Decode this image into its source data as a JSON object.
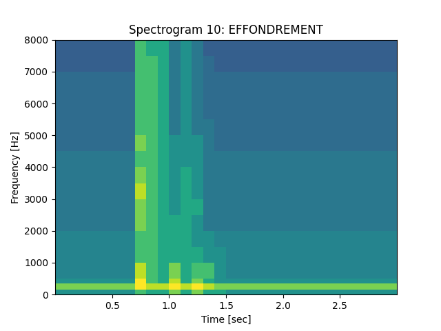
{
  "chart_data": {
    "type": "heatmap",
    "title": "Spectrogram 10: EFFONDREMENT",
    "x_label": "Time [sec]",
    "y_label": "Frequency [Hz]",
    "color": "viridis",
    "xlim": [
      0,
      3
    ],
    "xticks": [
      0.5,
      1.0,
      1.5,
      2.0,
      2.5
    ],
    "ylim": [
      0,
      8000
    ],
    "yticks": [
      0,
      1000,
      2000,
      3000,
      4000,
      5000,
      6000,
      7000,
      8000
    ],
    "clim": [
      0,
      10
    ],
    "x_edges": [
      0,
      0.1,
      0.2,
      0.3,
      0.4,
      0.5,
      0.6,
      0.7,
      0.8,
      0.9,
      1.0,
      1.1,
      1.2,
      1.3,
      1.4,
      1.5,
      1.6,
      1.7,
      1.8,
      1.9,
      2.0,
      2.1,
      2.2,
      2.3,
      2.4,
      2.5,
      2.6,
      2.7,
      2.8,
      2.9,
      3.0
    ],
    "y_edges": [
      0,
      150,
      350,
      500,
      1000,
      1500,
      2000,
      2500,
      3000,
      3500,
      4000,
      4500,
      5000,
      5500,
      6000,
      6500,
      7000,
      7500,
      8000
    ],
    "cells": [
      [
        5,
        5,
        5,
        5,
        5,
        5,
        5,
        7,
        6,
        6,
        8,
        6,
        8,
        6,
        6,
        5,
        5,
        5,
        5,
        5,
        5,
        5,
        5,
        5,
        5,
        5,
        5,
        5,
        5,
        5
      ],
      [
        8,
        8,
        8,
        8,
        8,
        8,
        8,
        10,
        9,
        9,
        10,
        9,
        10,
        9,
        8,
        8,
        8,
        8,
        8,
        8,
        8,
        8,
        8,
        8,
        8,
        8,
        8,
        8,
        8,
        8
      ],
      [
        5,
        5,
        5,
        5,
        5,
        5,
        5,
        10,
        7,
        6,
        9,
        6,
        8,
        6,
        5,
        5,
        5,
        5,
        5,
        5,
        5,
        5,
        5,
        5,
        5,
        5,
        5,
        5,
        5,
        5
      ],
      [
        4.5,
        4.5,
        4.5,
        4.5,
        4.5,
        4.5,
        4.5,
        9,
        7,
        6,
        8,
        6,
        7,
        7,
        5,
        4.5,
        4.5,
        4.5,
        4.5,
        4.5,
        4.5,
        4.5,
        4.5,
        4.5,
        4.5,
        4.5,
        4.5,
        4.5,
        4.5,
        4.5
      ],
      [
        4.5,
        4.5,
        4.5,
        4.5,
        4.5,
        4.5,
        4.5,
        7,
        7,
        6,
        6,
        6,
        6,
        5,
        5,
        4.5,
        4.5,
        4.5,
        4.5,
        4.5,
        4.5,
        4.5,
        4.5,
        4.5,
        4.5,
        4.5,
        4.5,
        4.5,
        4.5,
        4.5
      ],
      [
        4.5,
        4.5,
        4.5,
        4.5,
        4.5,
        4.5,
        4.5,
        7,
        7,
        6,
        6,
        6,
        5,
        5,
        4.5,
        4.5,
        4.5,
        4.5,
        4.5,
        4.5,
        4.5,
        4.5,
        4.5,
        4.5,
        4.5,
        4.5,
        4.5,
        4.5,
        4.5,
        4.5
      ],
      [
        4,
        4,
        4,
        4,
        4,
        4,
        4,
        8,
        7,
        6,
        6,
        6,
        5,
        4,
        4,
        4,
        4,
        4,
        4,
        4,
        4,
        4,
        4,
        4,
        4,
        4,
        4,
        4,
        4,
        4
      ],
      [
        4,
        4,
        4,
        4,
        4,
        4,
        4,
        8,
        7,
        6,
        5,
        6,
        6,
        4,
        4,
        4,
        4,
        4,
        4,
        4,
        4,
        4,
        4,
        4,
        4,
        4,
        4,
        4,
        4,
        4
      ],
      [
        4,
        4,
        4,
        4,
        4,
        4,
        4,
        9,
        7,
        6,
        5,
        6,
        5,
        4,
        4,
        4,
        4,
        4,
        4,
        4,
        4,
        4,
        4,
        4,
        4,
        4,
        4,
        4,
        4,
        4
      ],
      [
        4,
        4,
        4,
        4,
        4,
        4,
        4,
        8,
        7,
        6,
        5,
        6,
        5,
        4,
        4,
        4,
        4,
        4,
        4,
        4,
        4,
        4,
        4,
        4,
        4,
        4,
        4,
        4,
        4,
        4
      ],
      [
        4,
        4,
        4,
        4,
        4,
        4,
        4,
        7,
        7,
        6,
        5,
        5,
        5,
        4,
        4,
        4,
        4,
        4,
        4,
        4,
        4,
        4,
        4,
        4,
        4,
        4,
        4,
        4,
        4,
        4
      ],
      [
        3.5,
        3.5,
        3.5,
        3.5,
        3.5,
        3.5,
        3.5,
        8,
        7,
        6,
        5,
        5,
        5,
        4,
        3.5,
        3.5,
        3.5,
        3.5,
        3.5,
        3.5,
        3.5,
        3.5,
        3.5,
        3.5,
        3.5,
        3.5,
        3.5,
        3.5,
        3.5,
        3.5
      ],
      [
        3.5,
        3.5,
        3.5,
        3.5,
        3.5,
        3.5,
        3.5,
        7,
        7,
        6,
        4,
        5,
        4,
        4,
        3.5,
        3.5,
        3.5,
        3.5,
        3.5,
        3.5,
        3.5,
        3.5,
        3.5,
        3.5,
        3.5,
        3.5,
        3.5,
        3.5,
        3.5,
        3.5
      ],
      [
        3.5,
        3.5,
        3.5,
        3.5,
        3.5,
        3.5,
        3.5,
        7,
        7,
        6,
        4,
        5,
        4,
        3.5,
        3.5,
        3.5,
        3.5,
        3.5,
        3.5,
        3.5,
        3.5,
        3.5,
        3.5,
        3.5,
        3.5,
        3.5,
        3.5,
        3.5,
        3.5,
        3.5
      ],
      [
        3.5,
        3.5,
        3.5,
        3.5,
        3.5,
        3.5,
        3.5,
        7,
        7,
        6,
        4,
        5,
        4,
        3.5,
        3.5,
        3.5,
        3.5,
        3.5,
        3.5,
        3.5,
        3.5,
        3.5,
        3.5,
        3.5,
        3.5,
        3.5,
        3.5,
        3.5,
        3.5,
        3.5
      ],
      [
        3.5,
        3.5,
        3.5,
        3.5,
        3.5,
        3.5,
        3.5,
        7,
        7,
        6,
        4,
        5,
        4,
        3.5,
        3.5,
        3.5,
        3.5,
        3.5,
        3.5,
        3.5,
        3.5,
        3.5,
        3.5,
        3.5,
        3.5,
        3.5,
        3.5,
        3.5,
        3.5,
        3.5
      ],
      [
        3,
        3,
        3,
        3,
        3,
        3,
        3,
        7,
        7,
        6,
        4,
        5,
        4,
        3.5,
        3,
        3,
        3,
        3,
        3,
        3,
        3,
        3,
        3,
        3,
        3,
        3,
        3,
        3,
        3,
        3
      ],
      [
        3,
        3,
        3,
        3,
        3,
        3,
        3,
        7,
        6,
        6,
        4,
        5,
        4,
        3,
        3,
        3,
        3,
        3,
        3,
        3,
        3,
        3,
        3,
        3,
        3,
        3,
        3,
        3,
        3,
        3
      ]
    ]
  }
}
